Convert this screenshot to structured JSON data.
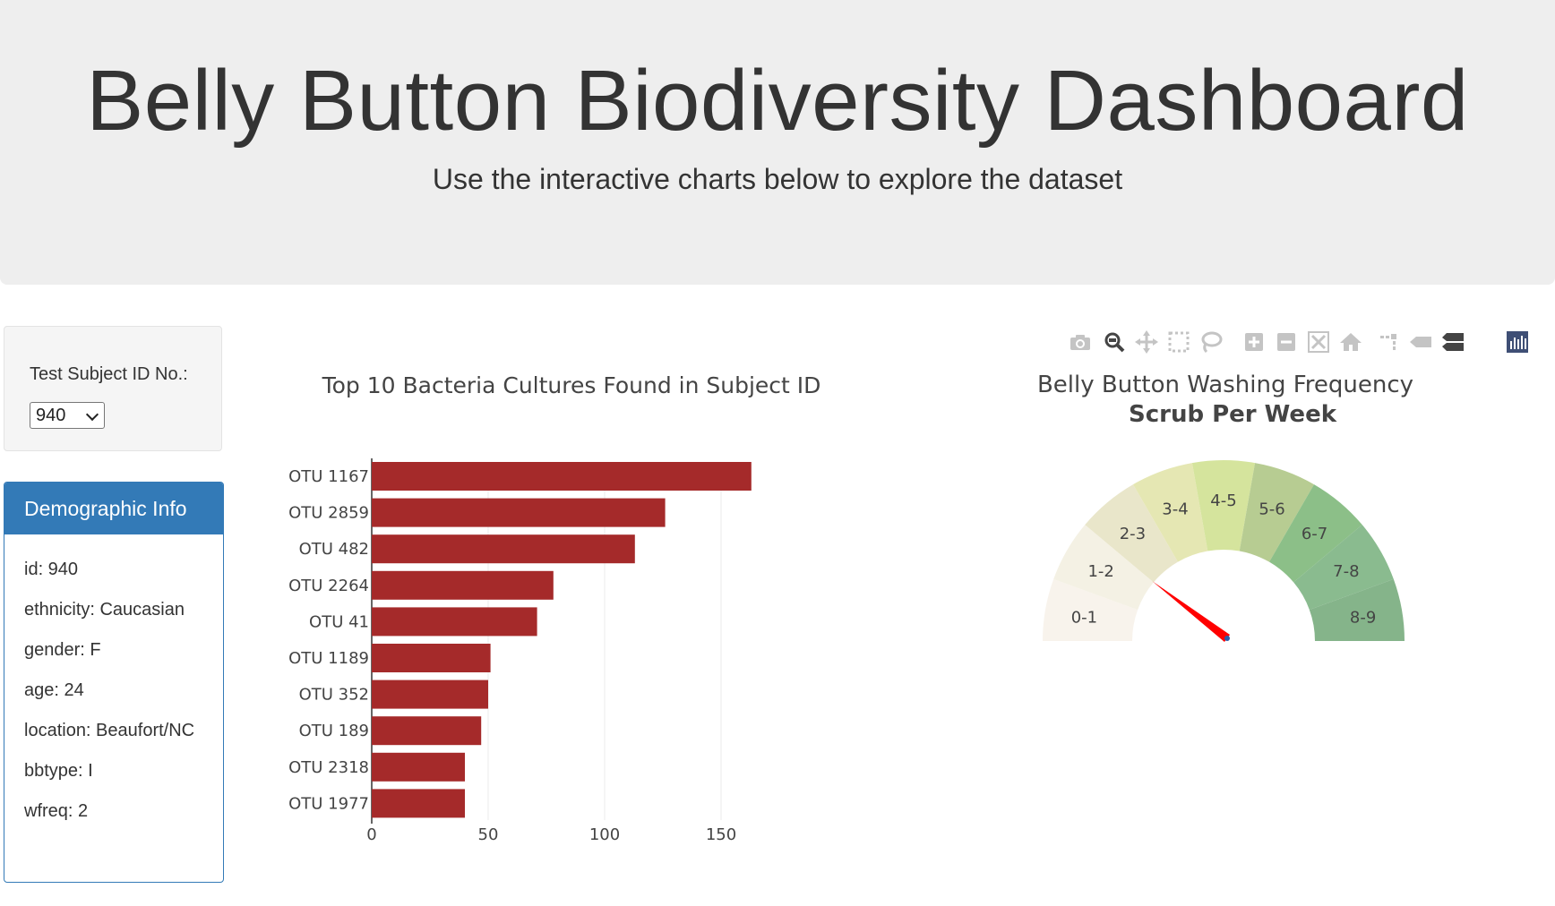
{
  "header": {
    "title": "Belly Button Biodiversity Dashboard",
    "subtitle": "Use the interactive charts below to explore the dataset"
  },
  "selector": {
    "label": "Test Subject ID No.:",
    "selected": "940"
  },
  "demographics": {
    "title": "Demographic Info",
    "items": [
      "id: 940",
      "ethnicity: Caucasian",
      "gender: F",
      "age: 24",
      "location: Beaufort/NC",
      "bbtype: I",
      "wfreq: 2"
    ]
  },
  "modebar": {
    "icons": [
      "camera-icon",
      "zoom-icon",
      "pan-icon",
      "box-select-icon",
      "lasso-select-icon",
      "zoom-in-icon",
      "zoom-out-icon",
      "autoscale-icon",
      "reset-axes-icon",
      "spike-lines-icon",
      "hover-closest-icon",
      "hover-compare-icon",
      "plotly-logo-icon"
    ]
  },
  "chart_data": [
    {
      "type": "bar",
      "orientation": "horizontal",
      "title": "Top 10 Bacteria Cultures Found in Subject ID",
      "categories": [
        "OTU 1167",
        "OTU 2859",
        "OTU 482",
        "OTU 2264",
        "OTU 41",
        "OTU 1189",
        "OTU 352",
        "OTU 189",
        "OTU 2318",
        "OTU 1977"
      ],
      "values": [
        163,
        126,
        113,
        78,
        71,
        51,
        50,
        47,
        40,
        40
      ],
      "xlim": [
        0,
        170
      ],
      "xticks": [
        0,
        50,
        100,
        150
      ],
      "bar_color": "#a52a2a",
      "grid": true
    },
    {
      "type": "gauge",
      "title": "Belly Button Washing Frequency",
      "subtitle": "Scrub Per Week",
      "range": [
        0,
        9
      ],
      "value": 2,
      "steps": [
        {
          "label": "0-1",
          "color": "#f8f3ec"
        },
        {
          "label": "1-2",
          "color": "#f4f1e4"
        },
        {
          "label": "2-3",
          "color": "#e9e6ca"
        },
        {
          "label": "3-4",
          "color": "#e5e7b3"
        },
        {
          "label": "4-5",
          "color": "#d5e49d"
        },
        {
          "label": "5-6",
          "color": "#b7cc92"
        },
        {
          "label": "6-7",
          "color": "#8cbf88"
        },
        {
          "label": "7-8",
          "color": "#8abb8f"
        },
        {
          "label": "8-9",
          "color": "#85b48a"
        }
      ],
      "needle_color": "#ff0000"
    }
  ]
}
